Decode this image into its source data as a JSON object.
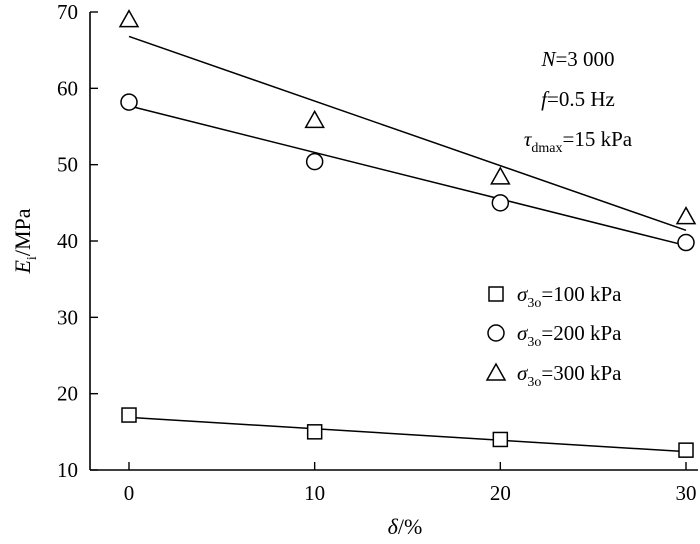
{
  "chart_data": {
    "type": "scatter",
    "xlabel": "δ/%",
    "ylabel": "Ei/MPa",
    "ylabel_parts": {
      "sym": "E",
      "sub": "i",
      "unit": "/MPa"
    },
    "xlim": [
      -3,
      30
    ],
    "ylim": [
      10,
      70
    ],
    "xticks": [
      0,
      10,
      20,
      30
    ],
    "yticks": [
      10,
      20,
      30,
      40,
      50,
      60,
      70
    ],
    "annotations": {
      "n_label": "N=3 000",
      "f_label": "f=0.5 Hz",
      "tau_label": "τdmax=15 kPa",
      "n_parts": {
        "sym": "N",
        "rest": "=3 000"
      },
      "f_parts": {
        "sym": "f",
        "rest": "=0.5 Hz"
      },
      "tau_parts": {
        "sym": "τ",
        "sub": "dmax",
        "rest": "=15 kPa"
      }
    },
    "legend_position": "right",
    "series": [
      {
        "name": "σ3o=100 kPa",
        "name_parts": {
          "sym": "σ",
          "sub": "3o",
          "rest": "=100 kPa"
        },
        "marker": "square",
        "x": [
          0,
          10,
          20,
          30
        ],
        "y": [
          17.2,
          15.0,
          14.0,
          12.6
        ],
        "fit": {
          "x": [
            0,
            30
          ],
          "y": [
            16.9,
            12.4
          ]
        }
      },
      {
        "name": "σ3o=200 kPa",
        "name_parts": {
          "sym": "σ",
          "sub": "3o",
          "rest": "=200 kPa"
        },
        "marker": "circle",
        "x": [
          0,
          10,
          20,
          30
        ],
        "y": [
          58.2,
          50.4,
          45.0,
          39.8
        ],
        "fit": {
          "x": [
            0,
            30
          ],
          "y": [
            57.7,
            39.4
          ]
        }
      },
      {
        "name": "σ3o=300 kPa",
        "name_parts": {
          "sym": "σ",
          "sub": "3o",
          "rest": "=300 kPa"
        },
        "marker": "triangle",
        "x": [
          0,
          10,
          20,
          30
        ],
        "y": [
          69.0,
          55.8,
          48.4,
          43.2
        ],
        "fit": {
          "x": [
            0,
            30
          ],
          "y": [
            66.8,
            41.4
          ]
        }
      }
    ]
  }
}
